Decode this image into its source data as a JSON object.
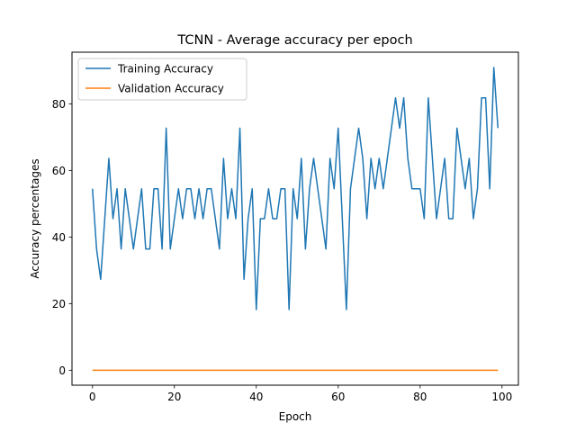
{
  "chart_data": {
    "type": "line",
    "title": "TCNN - Average accuracy per epoch",
    "xlabel": "Epoch",
    "ylabel": "Accuracy percentages",
    "xlim": [
      -5,
      104
    ],
    "ylim": [
      -4.5,
      95.5
    ],
    "xticks": [
      0,
      20,
      40,
      60,
      80,
      100
    ],
    "yticks": [
      0,
      20,
      40,
      60,
      80
    ],
    "grid": false,
    "legend_position": "top-left",
    "x": [
      0,
      1,
      2,
      3,
      4,
      5,
      6,
      7,
      8,
      9,
      10,
      11,
      12,
      13,
      14,
      15,
      16,
      17,
      18,
      19,
      20,
      21,
      22,
      23,
      24,
      25,
      26,
      27,
      28,
      29,
      30,
      31,
      32,
      33,
      34,
      35,
      36,
      37,
      38,
      39,
      40,
      41,
      42,
      43,
      44,
      45,
      46,
      47,
      48,
      49,
      50,
      51,
      52,
      53,
      54,
      55,
      56,
      57,
      58,
      59,
      60,
      61,
      62,
      63,
      64,
      65,
      66,
      67,
      68,
      69,
      70,
      71,
      72,
      73,
      74,
      75,
      76,
      77,
      78,
      79,
      80,
      81,
      82,
      83,
      84,
      85,
      86,
      87,
      88,
      89,
      90,
      91,
      92,
      93,
      94,
      95,
      96,
      97,
      98,
      99
    ],
    "series": [
      {
        "name": "Training Accuracy",
        "color": "#1f77b4",
        "values": [
          54.5,
          36.4,
          27.3,
          45.5,
          63.6,
          45.5,
          54.5,
          36.4,
          54.5,
          45.5,
          36.4,
          45.5,
          54.5,
          36.4,
          36.4,
          54.5,
          54.5,
          36.4,
          72.7,
          36.4,
          45.5,
          54.5,
          45.5,
          54.5,
          54.5,
          45.5,
          54.5,
          45.5,
          54.5,
          54.5,
          45.5,
          36.4,
          63.6,
          45.5,
          54.5,
          45.5,
          72.7,
          27.3,
          45.5,
          54.5,
          18.2,
          45.5,
          45.5,
          54.5,
          45.5,
          45.5,
          54.5,
          54.5,
          18.2,
          54.5,
          45.5,
          63.6,
          36.4,
          54.5,
          63.6,
          54.5,
          45.5,
          36.4,
          63.6,
          54.5,
          72.7,
          45.5,
          18.2,
          54.5,
          63.6,
          72.7,
          63.6,
          45.5,
          63.6,
          54.5,
          63.6,
          54.5,
          63.6,
          72.7,
          81.8,
          72.7,
          81.8,
          63.6,
          54.5,
          54.5,
          54.5,
          45.5,
          81.8,
          63.6,
          45.5,
          54.5,
          63.6,
          45.5,
          45.5,
          72.7,
          63.6,
          54.5,
          63.6,
          45.5,
          54.5,
          81.8,
          81.8,
          54.5,
          90.9,
          72.7
        ]
      },
      {
        "name": "Validation Accuracy",
        "color": "#ff7f0e",
        "values": [
          0,
          0,
          0,
          0,
          0,
          0,
          0,
          0,
          0,
          0,
          0,
          0,
          0,
          0,
          0,
          0,
          0,
          0,
          0,
          0,
          0,
          0,
          0,
          0,
          0,
          0,
          0,
          0,
          0,
          0,
          0,
          0,
          0,
          0,
          0,
          0,
          0,
          0,
          0,
          0,
          0,
          0,
          0,
          0,
          0,
          0,
          0,
          0,
          0,
          0,
          0,
          0,
          0,
          0,
          0,
          0,
          0,
          0,
          0,
          0,
          0,
          0,
          0,
          0,
          0,
          0,
          0,
          0,
          0,
          0,
          0,
          0,
          0,
          0,
          0,
          0,
          0,
          0,
          0,
          0,
          0,
          0,
          0,
          0,
          0,
          0,
          0,
          0,
          0,
          0,
          0,
          0,
          0,
          0,
          0,
          0,
          0,
          0,
          0,
          0
        ]
      }
    ]
  }
}
